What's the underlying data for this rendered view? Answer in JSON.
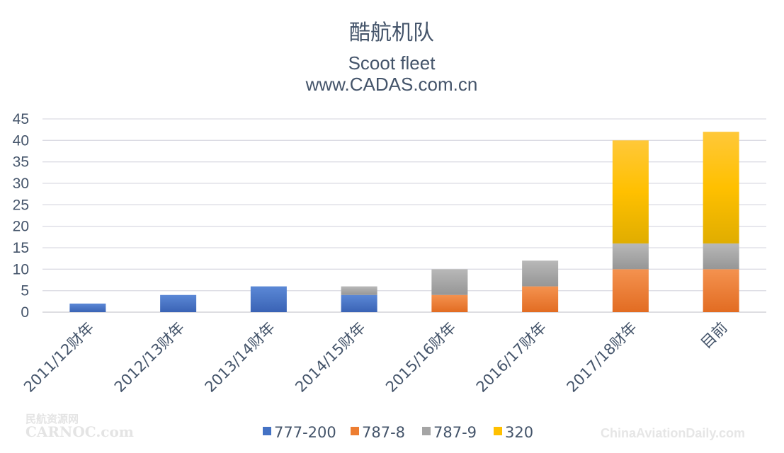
{
  "chart_data": {
    "type": "bar",
    "stacked": true,
    "title": "酷航机队",
    "subtitle": "Scoot fleet",
    "source": "www.CADAS.com.cn",
    "categories": [
      "2011/12财年",
      "2012/13财年",
      "2013/14财年",
      "2014/15财年",
      "2015/16财年",
      "2016/17财年",
      "2017/18财年",
      "目前"
    ],
    "series": [
      {
        "name": "777-200",
        "color": "#4472c4",
        "values": [
          2,
          4,
          6,
          4,
          0,
          0,
          0,
          0
        ]
      },
      {
        "name": "787-8",
        "color": "#ed7d31",
        "values": [
          0,
          0,
          0,
          0,
          4,
          6,
          10,
          10
        ]
      },
      {
        "name": "787-9",
        "color": "#a5a5a5",
        "values": [
          0,
          0,
          0,
          2,
          6,
          6,
          6,
          6
        ]
      },
      {
        "name": "320",
        "color": "#ffc000",
        "values": [
          0,
          0,
          0,
          0,
          0,
          0,
          24,
          26
        ]
      }
    ],
    "yticks": [
      0,
      5,
      10,
      15,
      20,
      25,
      30,
      35,
      40,
      45
    ],
    "ylim": [
      0,
      45
    ],
    "grid": true,
    "legend": "bottom"
  },
  "watermarks": {
    "left_top": "民航资源网",
    "left_bottom": "CARNOC.com",
    "right": "ChinaAviationDaily.com"
  }
}
